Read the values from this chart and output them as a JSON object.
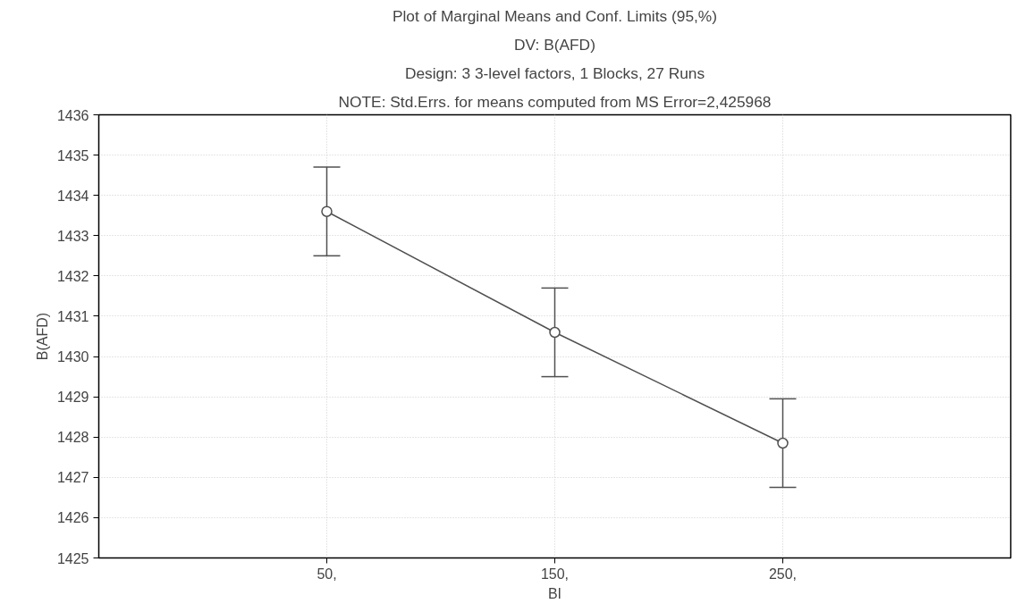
{
  "chart_data": {
    "type": "line",
    "title": "Plot of Marginal Means and Conf. Limits (95,%)",
    "annotations": [
      "DV: B(AFD)",
      "Design: 3 3-level factors, 1 Blocks, 27 Runs",
      "NOTE: Std.Errs. for means computed from MS Error=2,425968"
    ],
    "xlabel": "BI",
    "ylabel": "B(AFD)",
    "x": [
      50,
      150,
      250
    ],
    "xlim": [
      -50,
      350
    ],
    "xticks": [
      {
        "value": 50,
        "label": "50,"
      },
      {
        "value": 150,
        "label": "150,"
      },
      {
        "value": 250,
        "label": "250,"
      }
    ],
    "series": [
      {
        "color": "#505050",
        "values": [
          1433.6,
          1430.6,
          1427.85
        ],
        "errors": [
          1.1,
          1.1,
          1.1
        ]
      }
    ],
    "ylim": [
      1425,
      1436
    ],
    "yticks": [
      1425,
      1426,
      1427,
      1428,
      1429,
      1430,
      1431,
      1432,
      1433,
      1434,
      1435,
      1436
    ],
    "grid": true,
    "marker": "circle",
    "line_style": "solid"
  }
}
